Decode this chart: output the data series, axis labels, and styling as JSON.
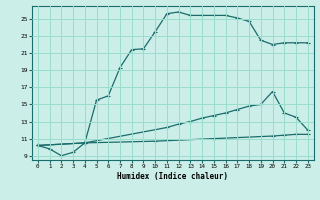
{
  "xlabel": "Humidex (Indice chaleur)",
  "bg_color": "#cceee8",
  "grid_color": "#99ddcc",
  "line_color": "#1a6b6b",
  "xlim": [
    -0.5,
    23.5
  ],
  "ylim": [
    8.5,
    26.5
  ],
  "yticks": [
    9,
    11,
    13,
    15,
    17,
    19,
    21,
    23,
    25
  ],
  "xticks": [
    0,
    1,
    2,
    3,
    4,
    5,
    6,
    7,
    8,
    9,
    10,
    11,
    12,
    13,
    14,
    15,
    16,
    17,
    18,
    19,
    20,
    21,
    22,
    23
  ],
  "curve1_x": [
    0,
    1,
    2,
    3,
    4,
    5,
    6,
    7,
    8,
    9,
    10,
    11,
    12,
    13,
    14,
    15,
    16,
    17,
    18,
    19,
    20,
    21,
    22,
    23
  ],
  "curve1_y": [
    10.2,
    9.8,
    9.0,
    9.4,
    10.5,
    15.5,
    16.0,
    19.3,
    21.4,
    21.5,
    23.5,
    25.6,
    25.8,
    25.4,
    25.4,
    25.4,
    25.4,
    25.1,
    24.7,
    22.5,
    22.0,
    22.2,
    22.2,
    22.2
  ],
  "curve2_x": [
    0,
    4,
    11,
    12,
    13,
    14,
    15,
    16,
    17,
    18,
    19,
    20,
    21,
    22,
    23
  ],
  "curve2_y": [
    10.2,
    10.5,
    12.3,
    12.7,
    13.0,
    13.4,
    13.7,
    14.0,
    14.4,
    14.8,
    15.0,
    16.5,
    14.0,
    13.5,
    12.0
  ],
  "curve3_x": [
    0,
    4,
    10,
    15,
    20,
    21,
    22,
    23
  ],
  "curve3_y": [
    10.2,
    10.5,
    10.7,
    11.0,
    11.3,
    11.4,
    11.5,
    11.5
  ],
  "marker": "+"
}
